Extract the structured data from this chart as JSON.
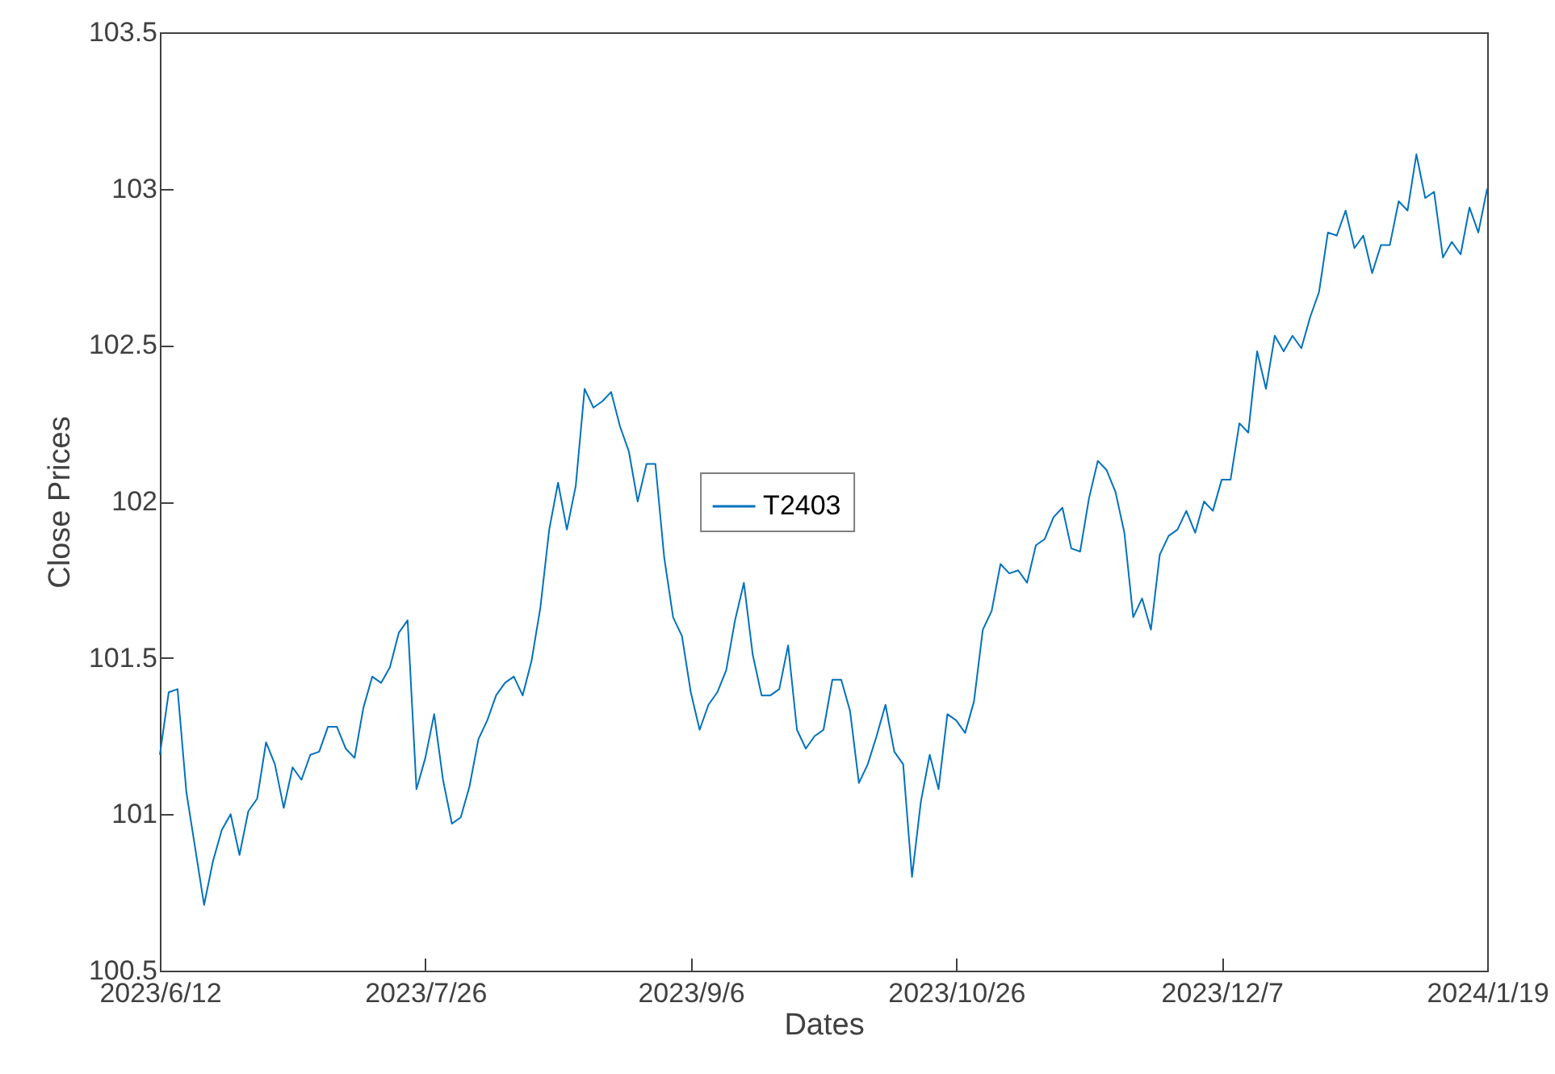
{
  "chart_data": {
    "type": "line",
    "xlabel": "Dates",
    "ylabel": "Close Prices",
    "legend": "center",
    "grid": false,
    "marker": "none",
    "line_style": "solid",
    "ylim": [
      100.5,
      103.5
    ],
    "yticks": [
      100.5,
      101,
      101.5,
      102,
      102.5,
      103,
      103.5
    ],
    "categories": [
      "2023/6/12",
      null,
      null,
      null,
      null,
      null,
      null,
      null,
      null,
      null,
      null,
      null,
      null,
      null,
      null,
      null,
      null,
      null,
      null,
      null,
      null,
      null,
      null,
      null,
      null,
      null,
      null,
      null,
      null,
      null,
      "2023/7/26",
      null,
      null,
      null,
      null,
      null,
      null,
      null,
      null,
      null,
      null,
      null,
      null,
      null,
      null,
      null,
      null,
      null,
      null,
      null,
      null,
      null,
      null,
      null,
      null,
      null,
      null,
      null,
      null,
      null,
      "2023/9/6",
      null,
      null,
      null,
      null,
      null,
      null,
      null,
      null,
      null,
      null,
      null,
      null,
      null,
      null,
      null,
      null,
      null,
      null,
      null,
      null,
      null,
      null,
      null,
      null,
      null,
      null,
      null,
      null,
      null,
      "2023/10/26",
      null,
      null,
      null,
      null,
      null,
      null,
      null,
      null,
      null,
      null,
      null,
      null,
      null,
      null,
      null,
      null,
      null,
      null,
      null,
      null,
      null,
      null,
      null,
      null,
      null,
      null,
      null,
      null,
      null,
      "2023/12/7",
      null,
      null,
      null,
      null,
      null,
      null,
      null,
      null,
      null,
      null,
      null,
      null,
      null,
      null,
      null,
      null,
      null,
      null,
      null,
      null,
      null,
      null,
      null,
      null,
      null,
      null,
      null,
      null,
      null,
      "2024/1/19"
    ],
    "series": [
      {
        "name": "T2403",
        "color": "#0072bd",
        "values": [
          101.19,
          101.39,
          101.4,
          101.07,
          100.89,
          100.71,
          100.85,
          100.95,
          101,
          100.87,
          101.01,
          101.05,
          101.23,
          101.16,
          101.02,
          101.15,
          101.11,
          101.19,
          101.2,
          101.28,
          101.28,
          101.21,
          101.18,
          101.34,
          101.44,
          101.42,
          101.47,
          101.58,
          101.62,
          101.08,
          101.18,
          101.32,
          101.11,
          100.97,
          100.99,
          101.09,
          101.24,
          101.3,
          101.38,
          101.42,
          101.44,
          101.38,
          101.49,
          101.66,
          101.91,
          102.06,
          101.91,
          102.05,
          102.36,
          102.3,
          102.32,
          102.35,
          102.24,
          102.16,
          102,
          102.12,
          102.12,
          101.82,
          101.63,
          101.57,
          101.39,
          101.27,
          101.35,
          101.39,
          101.46,
          101.62,
          101.74,
          101.51,
          101.38,
          101.38,
          101.4,
          101.54,
          101.27,
          101.21,
          101.25,
          101.27,
          101.43,
          101.43,
          101.33,
          101.1,
          101.16,
          101.25,
          101.35,
          101.2,
          101.16,
          100.8,
          101.04,
          101.19,
          101.08,
          101.32,
          101.3,
          101.26,
          101.36,
          101.59,
          101.65,
          101.8,
          101.77,
          101.78,
          101.74,
          101.86,
          101.88,
          101.95,
          101.98,
          101.85,
          101.84,
          102.01,
          102.13,
          102.1,
          102.03,
          101.9,
          101.63,
          101.69,
          101.59,
          101.83,
          101.89,
          101.91,
          101.97,
          101.9,
          102,
          101.97,
          102.07,
          102.07,
          102.25,
          102.22,
          102.48,
          102.36,
          102.53,
          102.48,
          102.53,
          102.49,
          102.59,
          102.67,
          102.86,
          102.85,
          102.93,
          102.81,
          102.85,
          102.73,
          102.82,
          102.82,
          102.96,
          102.93,
          103.11,
          102.97,
          102.99,
          102.78,
          102.83,
          102.79,
          102.94,
          102.86,
          103
        ]
      }
    ]
  }
}
